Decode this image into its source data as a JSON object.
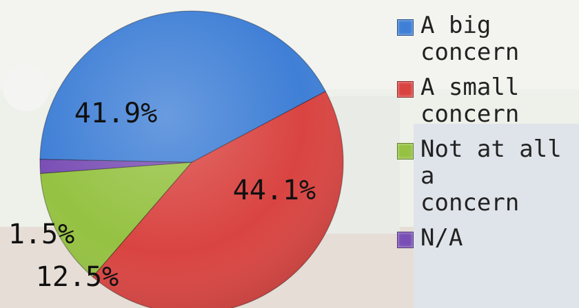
{
  "chart_data": {
    "type": "pie",
    "title": "",
    "categories": [
      "A big concern",
      "A small concern",
      "Not at all a concern",
      "N/A"
    ],
    "values": [
      41.9,
      44.1,
      12.5,
      1.5
    ],
    "value_labels": [
      "41.9%",
      "44.1%",
      "12.5%",
      "1.5%"
    ],
    "colors": [
      "#3f7fd6",
      "#d94441",
      "#95c242",
      "#7a4fb5"
    ],
    "legend": {
      "placement": "right",
      "entries": [
        "A big\nconcern",
        "A small\nconcern",
        "Not at all a\nconcern",
        "N/A"
      ]
    }
  }
}
